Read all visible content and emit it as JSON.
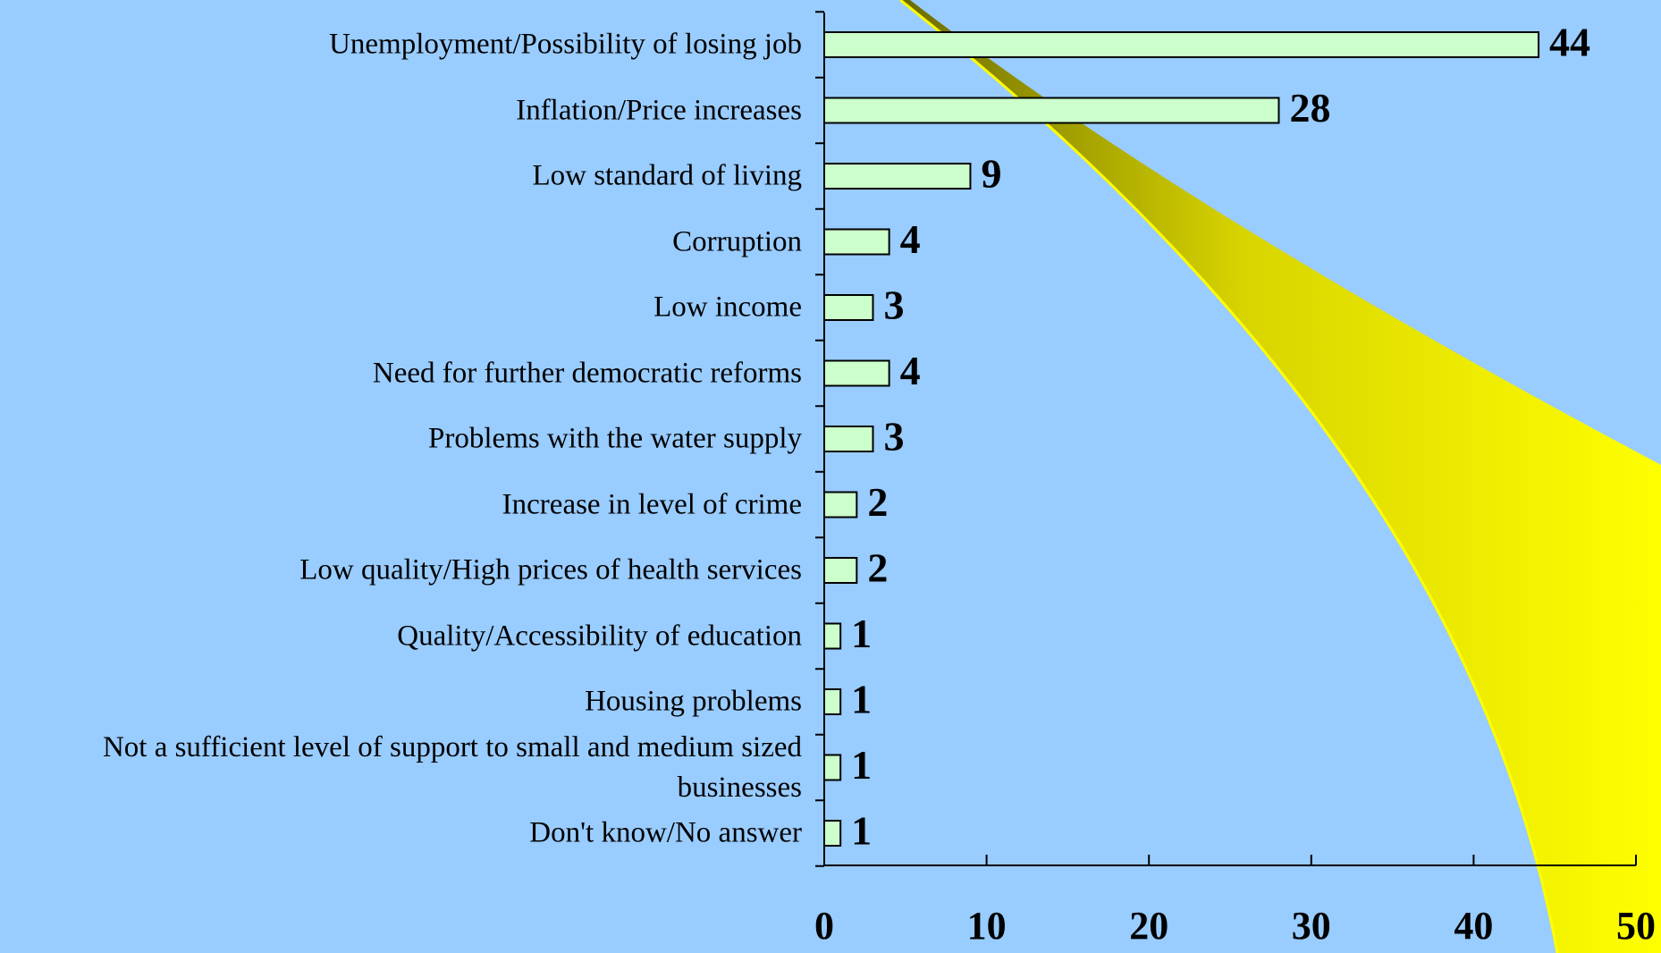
{
  "chart_data": {
    "type": "bar",
    "orientation": "horizontal",
    "categories": [
      "Unemployment/Possibility of losing job",
      "Inflation/Price increases",
      "Low standard of living",
      "Corruption",
      "Low income",
      "Need for further democratic reforms",
      "Problems with the water supply",
      "Increase in level of crime",
      "Low quality/High prices of health services",
      "Quality/Accessibility of education",
      "Housing problems",
      "Not a sufficient level of support to small and medium sized businesses",
      "Don't know/No answer"
    ],
    "values": [
      44,
      28,
      9,
      4,
      3,
      4,
      3,
      2,
      2,
      1,
      1,
      1,
      1
    ],
    "color": "#ccffcc",
    "xlim": [
      0,
      50
    ],
    "xticks": [
      0,
      10,
      20,
      30,
      40,
      50
    ]
  }
}
